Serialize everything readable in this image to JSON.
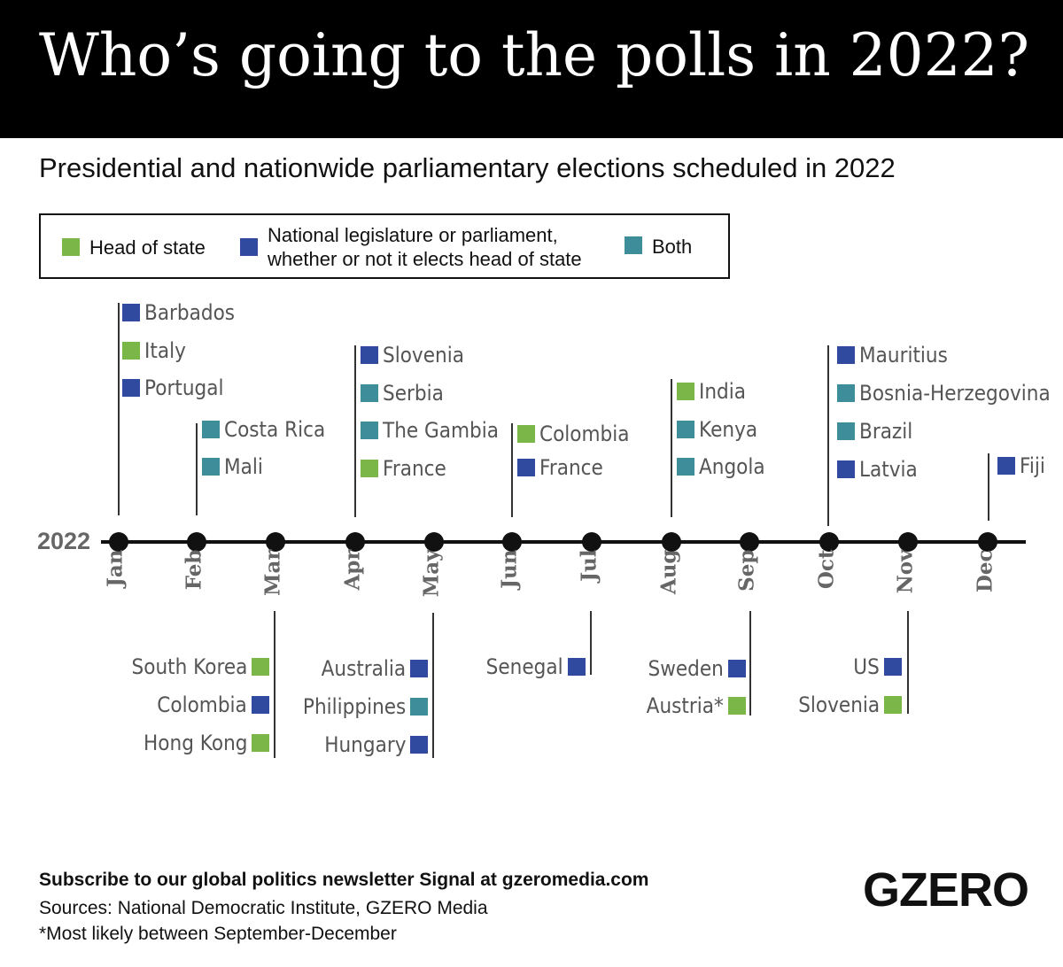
{
  "title": "Who’s going to the polls in 2022?",
  "subtitle": "Presidential and nationwide parliamentary elections scheduled in 2022",
  "colors": {
    "head_of_state": "#7ab648",
    "legislature": "#2f4a9e",
    "both": "#3d8d9a"
  },
  "legend": {
    "head_of_state": "Head of state",
    "legislature_line1": "National legislature or parliament,",
    "legislature_line2": "whether or not it elects head of state",
    "both": "Both"
  },
  "timeline": {
    "year_label": "2022",
    "months": [
      "Jan",
      "Feb",
      "Mar",
      "Apr",
      "May",
      "Jun",
      "Jul",
      "Aug",
      "Sep",
      "Oct",
      "Nov",
      "Dec"
    ]
  },
  "elections": {
    "jan": [
      {
        "country": "Barbados",
        "type": "legislature"
      },
      {
        "country": "Italy",
        "type": "head_of_state"
      },
      {
        "country": "Portugal",
        "type": "legislature"
      }
    ],
    "feb": [
      {
        "country": "Costa Rica",
        "type": "both"
      },
      {
        "country": "Mali",
        "type": "both"
      }
    ],
    "mar": [
      {
        "country": "South Korea",
        "type": "head_of_state"
      },
      {
        "country": "Colombia",
        "type": "legislature"
      },
      {
        "country": "Hong Kong",
        "type": "head_of_state"
      }
    ],
    "apr": [
      {
        "country": "Slovenia",
        "type": "legislature"
      },
      {
        "country": "Serbia",
        "type": "both"
      },
      {
        "country": "The Gambia",
        "type": "both"
      },
      {
        "country": "France",
        "type": "head_of_state"
      }
    ],
    "may": [
      {
        "country": "Australia",
        "type": "legislature"
      },
      {
        "country": "Philippines",
        "type": "both"
      },
      {
        "country": "Hungary",
        "type": "legislature"
      }
    ],
    "jun": [
      {
        "country": "Colombia",
        "type": "head_of_state"
      },
      {
        "country": "France",
        "type": "legislature"
      }
    ],
    "jul": [
      {
        "country": "Senegal",
        "type": "legislature"
      }
    ],
    "aug": [
      {
        "country": "India",
        "type": "head_of_state"
      },
      {
        "country": "Kenya",
        "type": "both"
      },
      {
        "country": "Angola",
        "type": "both"
      }
    ],
    "sep": [
      {
        "country": "Sweden",
        "type": "legislature"
      },
      {
        "country": "Austria*",
        "type": "head_of_state"
      }
    ],
    "oct": [
      {
        "country": "Mauritius",
        "type": "legislature"
      },
      {
        "country": "Bosnia-Herzegovina",
        "type": "both"
      },
      {
        "country": "Brazil",
        "type": "both"
      },
      {
        "country": "Latvia",
        "type": "legislature"
      }
    ],
    "nov": [
      {
        "country": "US",
        "type": "legislature"
      },
      {
        "country": "Slovenia",
        "type": "head_of_state"
      }
    ],
    "dec": [
      {
        "country": "Fiji",
        "type": "legislature"
      }
    ]
  },
  "footer": {
    "subscribe": "Subscribe to our global politics newsletter Signal at gzeromedia.com",
    "sources": "Sources:  National Democratic Institute, GZERO Media",
    "note": "*Most likely between September-December"
  },
  "logo_text": "GZERO"
}
